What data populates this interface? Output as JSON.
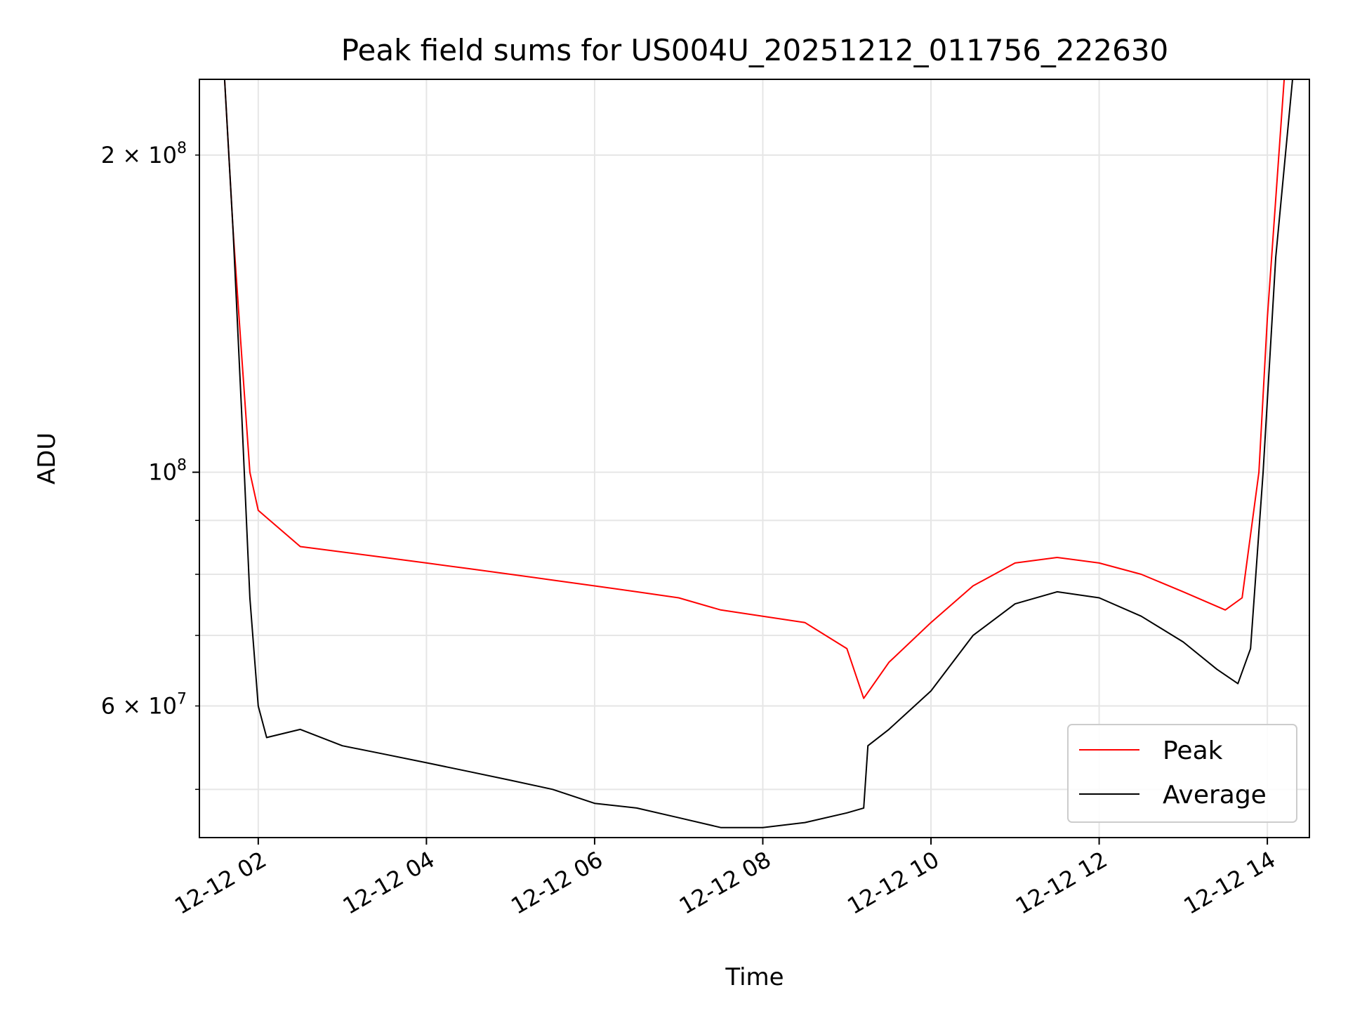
{
  "chart_data": {
    "type": "line",
    "title": "Peak field sums for US004U_20251212_011756_222630",
    "xlabel": "Time",
    "ylabel": "ADU",
    "yscale": "log",
    "xlim": [
      1.3,
      14.5
    ],
    "ylim": [
      45000000,
      236000000
    ],
    "x_ticks": [
      {
        "value": 2,
        "label": "12-12 02"
      },
      {
        "value": 4,
        "label": "12-12 04"
      },
      {
        "value": 6,
        "label": "12-12 06"
      },
      {
        "value": 8,
        "label": "12-12 08"
      },
      {
        "value": 10,
        "label": "12-12 10"
      },
      {
        "value": 12,
        "label": "12-12 12"
      },
      {
        "value": 14,
        "label": "12-12 14"
      }
    ],
    "y_major_ticks": [
      {
        "value": 100000000,
        "base": "10",
        "exp": "8"
      }
    ],
    "y_labeled_minor_ticks": [
      {
        "value": 200000000,
        "coef": "2",
        "base": "10",
        "exp": "8"
      },
      {
        "value": 60000000,
        "coef": "6",
        "base": "10",
        "exp": "7"
      }
    ],
    "y_minor_ticks": [
      50000000,
      70000000,
      80000000,
      90000000
    ],
    "grid": true,
    "legend_position": "lower-right",
    "series": [
      {
        "name": "Peak",
        "color": "#ff0000",
        "x": [
          1.3,
          1.6,
          1.7,
          1.8,
          1.9,
          2.0,
          2.5,
          3.0,
          3.5,
          4.0,
          4.5,
          5.0,
          5.5,
          6.0,
          6.5,
          7.0,
          7.5,
          8.0,
          8.5,
          9.0,
          9.2,
          9.5,
          10.0,
          10.5,
          11.0,
          11.5,
          12.0,
          12.5,
          13.0,
          13.5,
          13.7,
          13.9,
          14.0,
          14.2,
          14.5
        ],
        "values": [
          236000000,
          236000000,
          170000000,
          130000000,
          100000000,
          92000000,
          85000000,
          84000000,
          83000000,
          82000000,
          81000000,
          80000000,
          79000000,
          78000000,
          77000000,
          76000000,
          74000000,
          73000000,
          72000000,
          68000000,
          61000000,
          66000000,
          72000000,
          78000000,
          82000000,
          83000000,
          82000000,
          80000000,
          77000000,
          74000000,
          76000000,
          100000000,
          140000000,
          236000000,
          236000000
        ]
      },
      {
        "name": "Average",
        "color": "#000000",
        "x": [
          1.3,
          1.6,
          1.7,
          1.8,
          1.9,
          2.0,
          2.1,
          2.5,
          3.0,
          3.5,
          4.0,
          4.5,
          5.0,
          5.5,
          6.0,
          6.5,
          7.0,
          7.5,
          8.0,
          8.5,
          9.0,
          9.2,
          9.25,
          9.5,
          10.0,
          10.5,
          11.0,
          11.5,
          12.0,
          12.5,
          13.0,
          13.4,
          13.65,
          13.8,
          13.95,
          14.1,
          14.3,
          14.5
        ],
        "values": [
          236000000,
          236000000,
          170000000,
          115000000,
          76000000,
          60000000,
          56000000,
          57000000,
          55000000,
          54000000,
          53000000,
          52000000,
          51000000,
          50000000,
          48500000,
          48000000,
          47000000,
          46000000,
          46000000,
          46500000,
          47500000,
          48000000,
          55000000,
          57000000,
          62000000,
          70000000,
          75000000,
          77000000,
          76000000,
          73000000,
          69000000,
          65000000,
          63000000,
          68000000,
          100000000,
          160000000,
          236000000,
          236000000
        ]
      }
    ]
  }
}
